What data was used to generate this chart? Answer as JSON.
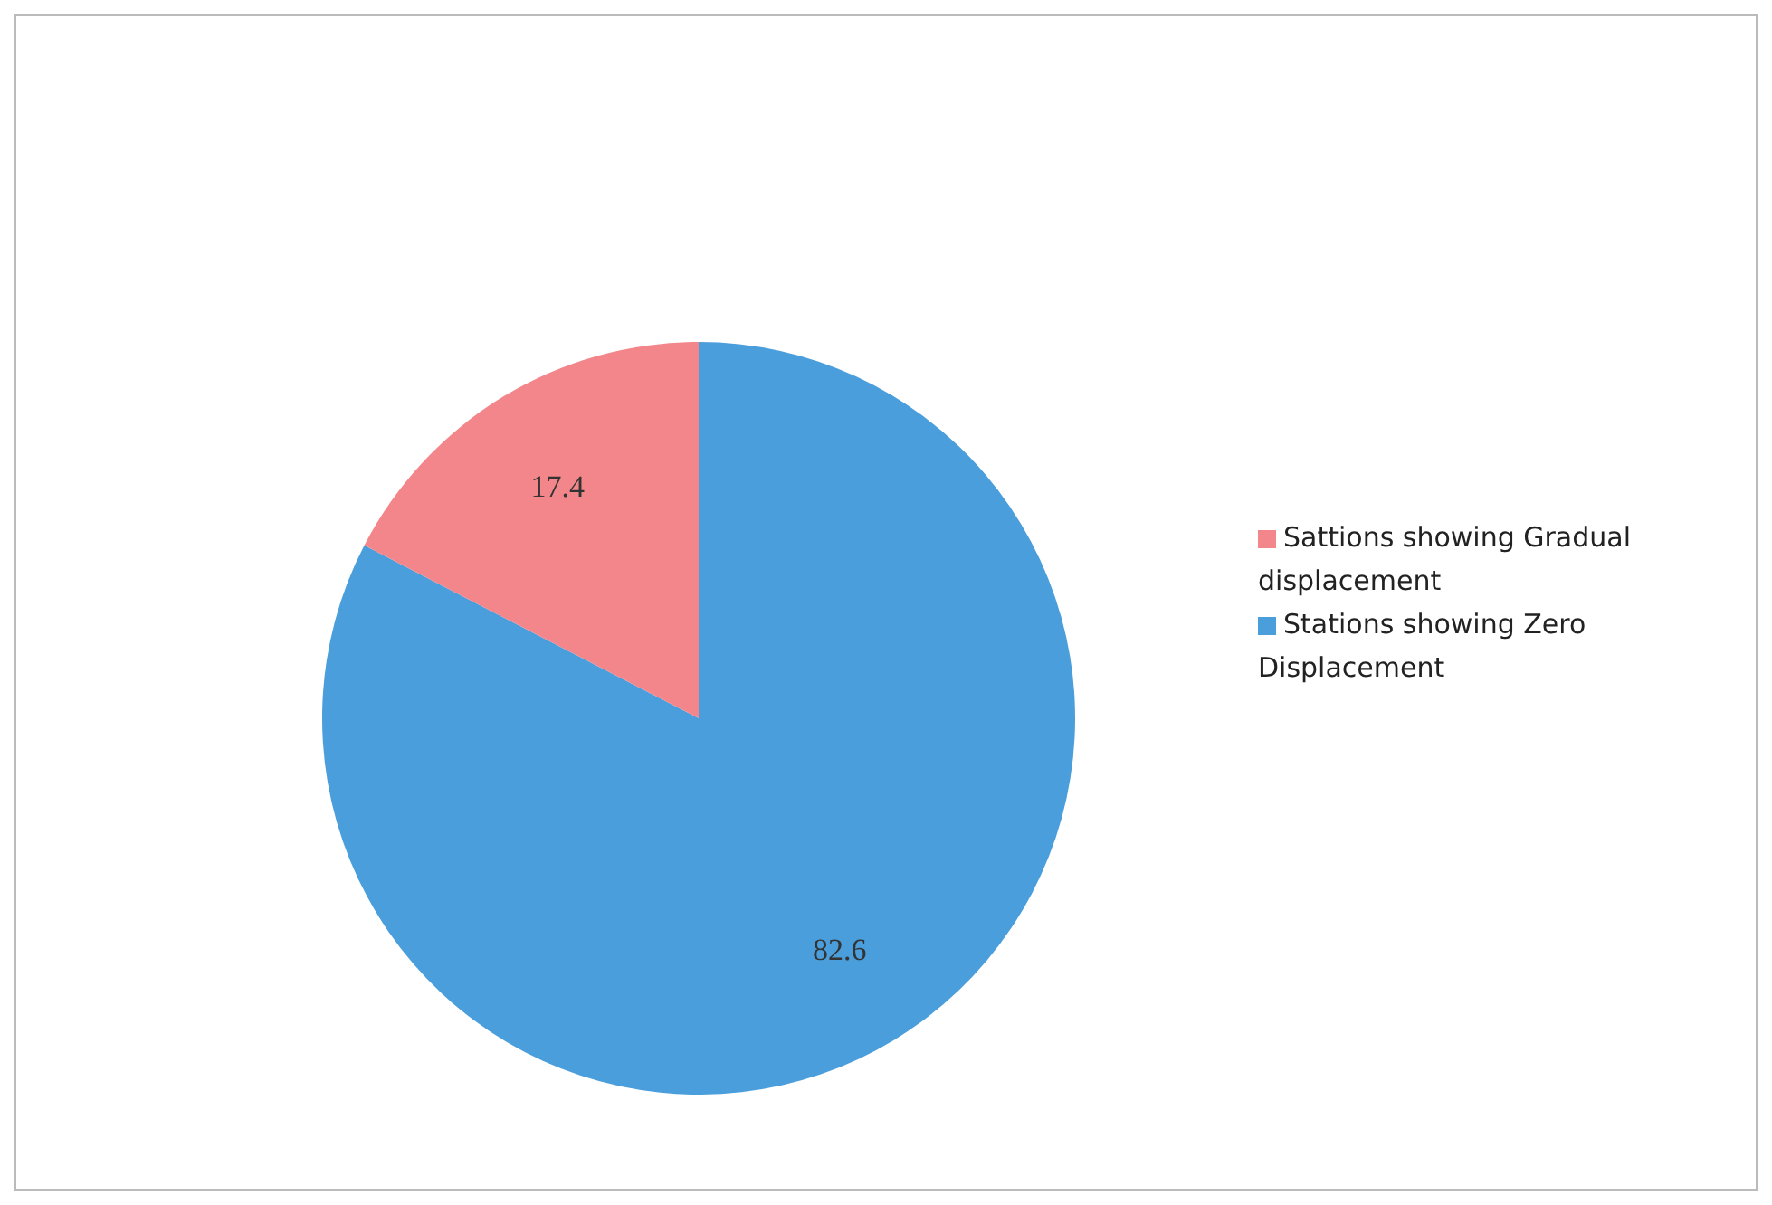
{
  "chart_data": {
    "type": "pie",
    "categories": [
      "Stations showing Zero Displacement",
      "Sattions showing Gradual displacement"
    ],
    "values": [
      82.6,
      17.4
    ],
    "colors": [
      "#4a9edb",
      "#f2868a"
    ],
    "data_labels": true,
    "legend": "right"
  }
}
